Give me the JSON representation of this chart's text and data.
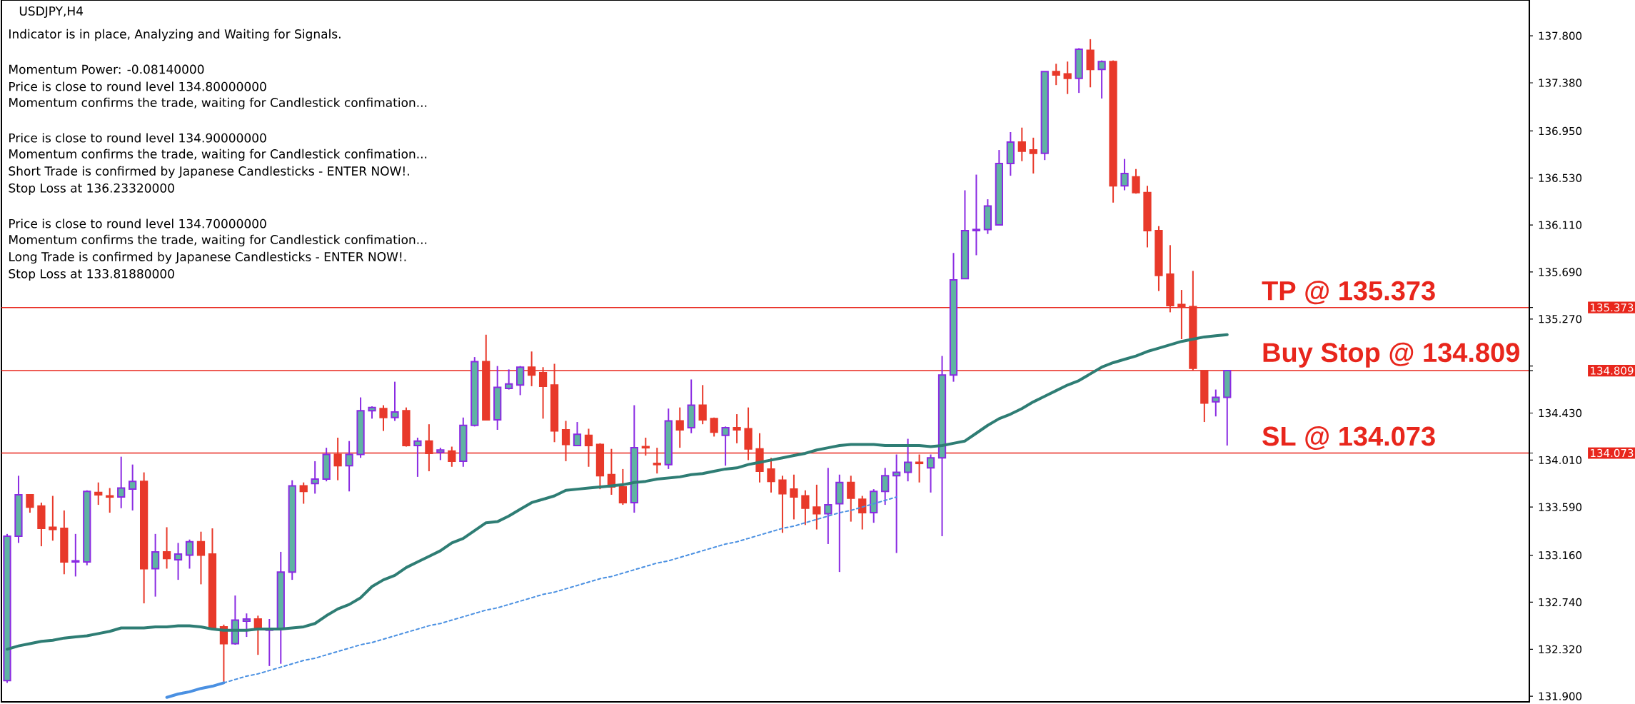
{
  "chart_data": {
    "type": "candlestick",
    "title": "USDJPY,H4",
    "annotations": [
      "Indicator is in place, Analyzing and Waiting for Signals.",
      "Momentum Power: -0.08140000",
      "Price is close to round level 134.80000000",
      "Momentum confirms the trade, waiting for Candlestick confimation...",
      "Price is close to round level 134.90000000",
      "Momentum confirms the trade, waiting for Candlestick confimation...",
      "Short Trade is confirmed by Japanese Candlesticks - ENTER NOW!.",
      "Stop Loss at 136.23320000",
      "Price is close to round level 134.70000000",
      "Momentum confirms the trade, waiting for Candlestick confimation...",
      "Long Trade is confirmed by Japanese Candlesticks - ENTER NOW!.",
      "Stop Loss at 133.81880000"
    ],
    "categories": [
      null,
      null,
      null,
      null,
      null,
      null,
      null,
      null,
      null,
      null,
      null,
      null,
      null,
      null,
      null,
      null,
      null,
      null,
      null,
      null,
      null,
      null,
      null,
      null,
      null,
      null,
      null,
      null,
      null,
      null,
      null,
      null,
      null,
      null,
      null,
      null,
      null,
      null,
      null,
      null,
      null,
      null,
      null,
      null,
      null,
      null,
      null,
      null,
      null,
      null,
      null,
      null,
      null,
      null,
      null,
      null,
      null,
      null,
      null,
      null,
      null,
      null,
      null,
      null,
      null,
      null,
      null,
      null,
      null,
      null,
      null,
      null,
      null,
      null,
      null,
      null,
      null,
      null,
      null,
      null,
      null,
      null,
      null,
      null,
      null,
      null,
      null,
      null,
      null,
      null,
      null,
      null,
      null,
      null,
      null,
      null,
      null,
      null,
      null,
      null,
      null,
      null,
      null,
      null,
      null,
      null,
      null,
      null,
      null,
      null,
      null,
      null,
      null,
      null,
      null,
      null,
      null,
      null,
      null,
      null,
      null,
      null,
      null,
      null,
      null,
      null,
      null,
      null,
      null,
      null,
      null,
      null,
      null,
      null
    ],
    "ohlc": [
      [
        132.04,
        133.35,
        132.02,
        133.33
      ],
      [
        133.33,
        133.87,
        133.27,
        133.7
      ],
      [
        133.7,
        133.7,
        133.54,
        133.59
      ],
      [
        133.6,
        133.63,
        133.24,
        133.4
      ],
      [
        133.41,
        133.69,
        133.29,
        133.39
      ],
      [
        133.4,
        133.56,
        132.99,
        133.1
      ],
      [
        133.1,
        133.35,
        132.97,
        133.11
      ],
      [
        133.1,
        133.74,
        133.07,
        133.73
      ],
      [
        133.72,
        133.81,
        133.61,
        133.7
      ],
      [
        133.69,
        133.76,
        133.54,
        133.68
      ],
      [
        133.68,
        134.04,
        133.58,
        133.76
      ],
      [
        133.75,
        133.97,
        133.56,
        133.82
      ],
      [
        133.82,
        133.9,
        132.73,
        133.04
      ],
      [
        133.04,
        133.35,
        132.79,
        133.19
      ],
      [
        133.19,
        133.41,
        133.04,
        133.13
      ],
      [
        133.12,
        133.27,
        132.94,
        133.17
      ],
      [
        133.16,
        133.3,
        133.04,
        133.28
      ],
      [
        133.28,
        133.37,
        132.9,
        133.16
      ],
      [
        133.17,
        133.4,
        132.5,
        132.51
      ],
      [
        132.52,
        132.54,
        132.02,
        132.37
      ],
      [
        132.37,
        132.8,
        132.36,
        132.58
      ],
      [
        132.57,
        132.64,
        132.43,
        132.59
      ],
      [
        132.59,
        132.62,
        132.27,
        132.5
      ],
      [
        132.49,
        132.59,
        132.17,
        132.5
      ],
      [
        132.5,
        133.19,
        132.19,
        133.01
      ],
      [
        133.01,
        133.83,
        132.94,
        133.78
      ],
      [
        133.78,
        133.81,
        133.62,
        133.73
      ],
      [
        133.8,
        134.0,
        133.71,
        133.84
      ],
      [
        133.84,
        134.12,
        133.82,
        134.06
      ],
      [
        134.06,
        134.21,
        133.83,
        133.96
      ],
      [
        133.96,
        134.18,
        133.73,
        134.06
      ],
      [
        134.06,
        134.57,
        134.03,
        134.45
      ],
      [
        134.45,
        134.49,
        134.38,
        134.48
      ],
      [
        134.47,
        134.5,
        134.27,
        134.39
      ],
      [
        134.39,
        134.71,
        134.36,
        134.44
      ],
      [
        134.45,
        134.48,
        134.13,
        134.14
      ],
      [
        134.14,
        134.21,
        133.86,
        134.18
      ],
      [
        134.18,
        134.33,
        133.91,
        134.07
      ],
      [
        134.08,
        134.12,
        134.01,
        134.1
      ],
      [
        134.09,
        134.13,
        133.95,
        134.0
      ],
      [
        134.0,
        134.39,
        133.95,
        134.32
      ],
      [
        134.32,
        134.93,
        134.31,
        134.89
      ],
      [
        134.89,
        135.13,
        134.37,
        134.37
      ],
      [
        134.37,
        134.85,
        134.28,
        134.66
      ],
      [
        134.65,
        134.82,
        134.64,
        134.69
      ],
      [
        134.68,
        134.85,
        134.59,
        134.84
      ],
      [
        134.84,
        134.98,
        134.67,
        134.77
      ],
      [
        134.79,
        134.84,
        134.38,
        134.67
      ],
      [
        134.68,
        134.87,
        134.17,
        134.27
      ],
      [
        134.28,
        134.36,
        134.0,
        134.15
      ],
      [
        134.14,
        134.35,
        134.14,
        134.24
      ],
      [
        134.23,
        134.29,
        133.95,
        134.14
      ],
      [
        134.15,
        134.16,
        133.75,
        133.87
      ],
      [
        133.88,
        134.11,
        133.7,
        133.77
      ],
      [
        133.77,
        133.93,
        133.61,
        133.63
      ],
      [
        133.63,
        134.5,
        133.54,
        134.12
      ],
      [
        134.13,
        134.21,
        134.05,
        134.12
      ],
      [
        133.98,
        134.12,
        133.89,
        133.97
      ],
      [
        133.97,
        134.47,
        133.93,
        134.36
      ],
      [
        134.36,
        134.48,
        134.12,
        134.28
      ],
      [
        134.3,
        134.73,
        134.25,
        134.5
      ],
      [
        134.5,
        134.68,
        134.33,
        134.37
      ],
      [
        134.38,
        134.39,
        134.22,
        134.26
      ],
      [
        134.23,
        134.31,
        133.96,
        134.3
      ],
      [
        134.3,
        134.42,
        134.16,
        134.28
      ],
      [
        134.29,
        134.48,
        134.01,
        134.11
      ],
      [
        134.11,
        134.25,
        133.81,
        133.91
      ],
      [
        133.93,
        134.03,
        133.72,
        133.82
      ],
      [
        133.83,
        133.87,
        133.36,
        133.71
      ],
      [
        133.75,
        133.88,
        133.48,
        133.68
      ],
      [
        133.69,
        133.74,
        133.43,
        133.58
      ],
      [
        133.59,
        133.79,
        133.39,
        133.53
      ],
      [
        133.53,
        133.94,
        133.26,
        133.61
      ],
      [
        133.62,
        133.88,
        133.01,
        133.81
      ],
      [
        133.81,
        133.87,
        133.46,
        133.67
      ],
      [
        133.66,
        133.69,
        133.39,
        133.54
      ],
      [
        133.54,
        133.75,
        133.45,
        133.73
      ],
      [
        133.73,
        133.94,
        133.61,
        133.87
      ],
      [
        133.87,
        134.06,
        133.18,
        133.9
      ],
      [
        133.9,
        134.2,
        133.82,
        133.99
      ],
      [
        133.99,
        134.06,
        133.81,
        133.98
      ],
      [
        133.94,
        134.06,
        133.72,
        134.03
      ],
      [
        134.03,
        134.94,
        133.33,
        134.77
      ],
      [
        134.77,
        135.86,
        134.71,
        135.62
      ],
      [
        135.63,
        136.42,
        135.63,
        136.06
      ],
      [
        136.06,
        136.56,
        135.84,
        136.07
      ],
      [
        136.07,
        136.34,
        136.03,
        136.28
      ],
      [
        136.11,
        136.78,
        136.11,
        136.66
      ],
      [
        136.66,
        136.94,
        136.55,
        136.85
      ],
      [
        136.85,
        136.98,
        136.68,
        136.77
      ],
      [
        136.78,
        136.89,
        136.57,
        136.75
      ],
      [
        136.75,
        137.48,
        136.69,
        137.48
      ],
      [
        137.48,
        137.55,
        137.36,
        137.45
      ],
      [
        137.46,
        137.57,
        137.28,
        137.42
      ],
      [
        137.42,
        137.69,
        137.29,
        137.68
      ],
      [
        137.67,
        137.77,
        137.34,
        137.5
      ],
      [
        137.5,
        137.58,
        137.24,
        137.57
      ],
      [
        137.57,
        137.58,
        136.31,
        136.46
      ],
      [
        136.46,
        136.7,
        136.42,
        136.57
      ],
      [
        136.54,
        136.61,
        136.39,
        136.4
      ],
      [
        136.4,
        136.46,
        135.91,
        136.06
      ],
      [
        136.06,
        136.1,
        135.52,
        135.66
      ],
      [
        135.67,
        135.93,
        135.33,
        135.39
      ],
      [
        135.4,
        135.53,
        135.09,
        135.38
      ],
      [
        135.38,
        135.7,
        134.81,
        134.83
      ],
      [
        134.81,
        134.81,
        134.35,
        134.52
      ],
      [
        134.53,
        134.64,
        134.4,
        134.57
      ],
      [
        134.57,
        134.81,
        134.14,
        134.81
      ],
      null,
      null,
      null,
      null,
      null,
      null,
      null,
      null,
      null,
      null,
      null,
      null,
      null,
      null,
      null,
      null,
      null,
      null,
      null,
      null,
      null,
      null,
      null,
      null,
      null,
      null
    ],
    "color": "#8a2be2",
    "colors": [
      "#5fb3a3",
      "#5fb3a3",
      "#e8392a",
      "#e8392a",
      "#e8392a",
      "#e8392a",
      "#5fb3a3",
      "#5fb3a3",
      "#e8392a",
      "#e8392a",
      "#5fb3a3",
      "#5fb3a3",
      "#e8392a",
      "#5fb3a3",
      "#e8392a",
      "#5fb3a3",
      "#5fb3a3",
      "#e8392a",
      "#e8392a",
      "#e8392a",
      "#5fb3a3",
      "#5fb3a3",
      "#e8392a",
      "#5fb3a3",
      "#5fb3a3",
      "#5fb3a3",
      "#e8392a",
      "#5fb3a3",
      "#5fb3a3",
      "#e8392a",
      "#5fb3a3",
      "#5fb3a3",
      "#5fb3a3",
      "#e8392a",
      "#5fb3a3",
      "#e8392a",
      "#5fb3a3",
      "#e8392a",
      "#5fb3a3",
      "#e8392a",
      "#5fb3a3",
      "#5fb3a3",
      "#e8392a",
      "#5fb3a3",
      "#5fb3a3",
      "#5fb3a3",
      "#e8392a",
      "#e8392a",
      "#e8392a",
      "#e8392a",
      "#5fb3a3",
      "#e8392a",
      "#e8392a",
      "#e8392a",
      "#e8392a",
      "#5fb3a3",
      "#e8392a",
      "#e8392a",
      "#5fb3a3",
      "#e8392a",
      "#5fb3a3",
      "#e8392a",
      "#e8392a",
      "#5fb3a3",
      "#e8392a",
      "#e8392a",
      "#e8392a",
      "#e8392a",
      "#e8392a",
      "#e8392a",
      "#e8392a",
      "#e8392a",
      "#5fb3a3",
      "#5fb3a3",
      "#e8392a",
      "#e8392a",
      "#5fb3a3",
      "#5fb3a3",
      "#5fb3a3",
      "#5fb3a3",
      "#e8392a",
      "#5fb3a3",
      "#5fb3a3",
      "#5fb3a3",
      "#5fb3a3",
      "#5fb3a3",
      "#5fb3a3",
      "#5fb3a3",
      "#5fb3a3",
      "#e8392a",
      "#e8392a",
      "#5fb3a3",
      "#e8392a",
      "#e8392a",
      "#5fb3a3",
      "#e8392a",
      "#5fb3a3",
      "#e8392a",
      "#5fb3a3",
      "#e8392a",
      "#e8392a",
      "#e8392a",
      "#e8392a",
      "#e8392a",
      "#e8392a",
      "#e8392a",
      "#5fb3a3",
      "#5fb3a3",
      null,
      null,
      null,
      null,
      null,
      null,
      null,
      null,
      null,
      null,
      null,
      null,
      null,
      null,
      null,
      null,
      null,
      null,
      null,
      null,
      null,
      null,
      null,
      null,
      null,
      null
    ],
    "series": [
      {
        "type": "line",
        "color": "#2e7d74",
        "line_style": "solid",
        "values": [
          132.32,
          132.35,
          132.37,
          132.39,
          132.4,
          132.42,
          132.43,
          132.44,
          132.46,
          132.48,
          132.51,
          132.51,
          132.51,
          132.52,
          132.52,
          132.53,
          132.53,
          132.52,
          132.5,
          132.49,
          132.49,
          132.49,
          132.5,
          132.5,
          132.5,
          132.51,
          132.52,
          132.55,
          132.62,
          132.68,
          132.72,
          132.78,
          132.88,
          132.94,
          132.98,
          133.05,
          133.1,
          133.15,
          133.2,
          133.27,
          133.31,
          133.38,
          133.45,
          133.46,
          133.51,
          133.57,
          133.63,
          133.66,
          133.69,
          133.74,
          133.75,
          133.76,
          133.77,
          133.78,
          133.79,
          133.81,
          133.82,
          133.84,
          133.85,
          133.86,
          133.88,
          133.89,
          133.91,
          133.93,
          133.94,
          133.97,
          133.99,
          134.01,
          134.03,
          134.05,
          134.07,
          134.1,
          134.12,
          134.14,
          134.15,
          134.15,
          134.15,
          134.14,
          134.14,
          134.14,
          134.14,
          134.13,
          134.14,
          134.16,
          134.18,
          134.25,
          134.32,
          134.38,
          134.42,
          134.47,
          134.53,
          134.58,
          134.63,
          134.68,
          134.72,
          134.78,
          134.84,
          134.88,
          134.91,
          134.94,
          134.98,
          135.01,
          135.04,
          135.07,
          135.09,
          135.11,
          135.12,
          135.13,
          null,
          null,
          null,
          null,
          null,
          null,
          null,
          null,
          null,
          null,
          null,
          null,
          null,
          null,
          null,
          null,
          null,
          null,
          null,
          null,
          null,
          null,
          null,
          null,
          null,
          null
        ]
      },
      {
        "type": "line",
        "color": "#4a90e2",
        "line_style": "solid",
        "values": [
          null,
          null,
          null,
          null,
          null,
          null,
          null,
          null,
          null,
          null,
          null,
          null,
          null,
          null,
          131.89,
          131.92,
          131.94,
          131.97,
          131.99,
          132.02,
          null,
          null,
          null,
          null,
          null,
          null,
          null,
          null,
          null,
          null,
          null,
          null,
          null,
          null,
          null,
          null,
          null,
          null,
          null,
          null,
          null,
          null,
          null,
          null,
          null,
          null,
          null,
          null,
          null,
          null,
          null,
          null,
          null,
          null,
          null,
          null,
          null,
          null,
          null,
          null,
          null,
          null,
          null,
          null,
          null,
          null,
          null,
          null,
          null,
          null,
          null,
          null,
          null,
          null,
          null,
          null,
          null,
          null,
          null,
          null,
          null,
          null,
          null,
          null,
          null,
          null,
          null,
          null,
          null,
          null,
          null,
          null,
          null,
          null,
          null,
          null,
          null,
          null,
          null,
          null,
          null,
          null,
          null,
          null,
          null,
          null,
          null,
          null,
          null,
          null,
          null,
          null,
          null,
          null,
          null,
          null,
          null,
          null,
          null,
          null,
          null,
          null,
          null,
          null,
          null,
          null,
          null,
          null,
          null,
          null,
          null,
          null,
          null,
          null
        ]
      },
      {
        "type": "line",
        "color": "#4a90e2",
        "line_style": "dotted",
        "values": [
          null,
          null,
          null,
          null,
          null,
          null,
          null,
          null,
          null,
          null,
          null,
          null,
          null,
          null,
          null,
          null,
          null,
          null,
          null,
          132.02,
          132.05,
          132.08,
          132.1,
          132.13,
          132.16,
          132.19,
          132.22,
          132.24,
          132.27,
          132.3,
          132.33,
          132.36,
          132.38,
          132.41,
          132.44,
          132.47,
          132.5,
          132.53,
          132.55,
          132.58,
          132.61,
          132.64,
          132.67,
          132.69,
          132.72,
          132.75,
          132.78,
          132.81,
          132.83,
          132.86,
          132.89,
          132.92,
          132.95,
          132.97,
          133.0,
          133.03,
          133.06,
          133.09,
          133.11,
          133.14,
          133.17,
          133.2,
          133.23,
          133.26,
          133.28,
          133.31,
          133.34,
          133.37,
          133.4,
          133.42,
          133.45,
          133.48,
          133.51,
          133.54,
          133.56,
          133.59,
          133.62,
          133.65,
          133.68,
          null,
          null,
          null,
          null,
          null,
          null,
          null,
          null,
          null,
          null,
          null,
          null,
          null,
          null,
          null,
          null,
          null,
          null,
          null,
          null,
          null,
          null,
          null,
          null,
          null,
          null,
          null,
          null,
          null,
          null,
          null,
          null,
          null,
          null,
          null,
          null,
          null,
          null,
          null,
          null,
          null,
          null,
          null,
          null,
          null,
          null,
          null,
          null,
          null,
          null,
          null,
          null,
          null,
          null,
          null
        ]
      }
    ],
    "ylim": [
      131.85,
      138.12
    ],
    "yticks": [
      {
        "value": 137.8,
        "label": "137.800"
      },
      {
        "value": 137.38,
        "label": "137.380"
      },
      {
        "value": 136.95,
        "label": "136.950"
      },
      {
        "value": 136.53,
        "label": "136.530"
      },
      {
        "value": 136.11,
        "label": "136.110"
      },
      {
        "value": 135.69,
        "label": "135.690"
      },
      {
        "value": 135.27,
        "label": "135.270"
      },
      {
        "value": 134.85,
        "label": null
      },
      {
        "value": 134.43,
        "label": "134.430"
      },
      {
        "value": 134.01,
        "label": "134.010"
      },
      {
        "value": 133.59,
        "label": "133.590"
      },
      {
        "value": 133.16,
        "label": "133.160"
      },
      {
        "value": 132.74,
        "label": "132.740"
      },
      {
        "value": 132.32,
        "label": "132.320"
      },
      {
        "value": 131.9,
        "label": "131.900"
      }
    ],
    "y2lim": [
      131.85,
      138.12
    ],
    "y2ticks": [
      {
        "value": 135.373,
        "label": "135.373"
      },
      {
        "value": 134.809,
        "label": "134.809"
      },
      {
        "value": 134.073,
        "label": "134.073"
      }
    ],
    "ref_lines": [
      {
        "axis": "y",
        "value": 135.373,
        "label": "TP @ 135.373",
        "color": "#e8261c"
      },
      {
        "axis": "y",
        "value": 134.809,
        "label": "Buy Stop @ 134.809",
        "color": "#e8261c"
      },
      {
        "axis": "y",
        "value": 134.073,
        "label": "SL @ 134.073",
        "color": "#e8261c"
      }
    ]
  }
}
